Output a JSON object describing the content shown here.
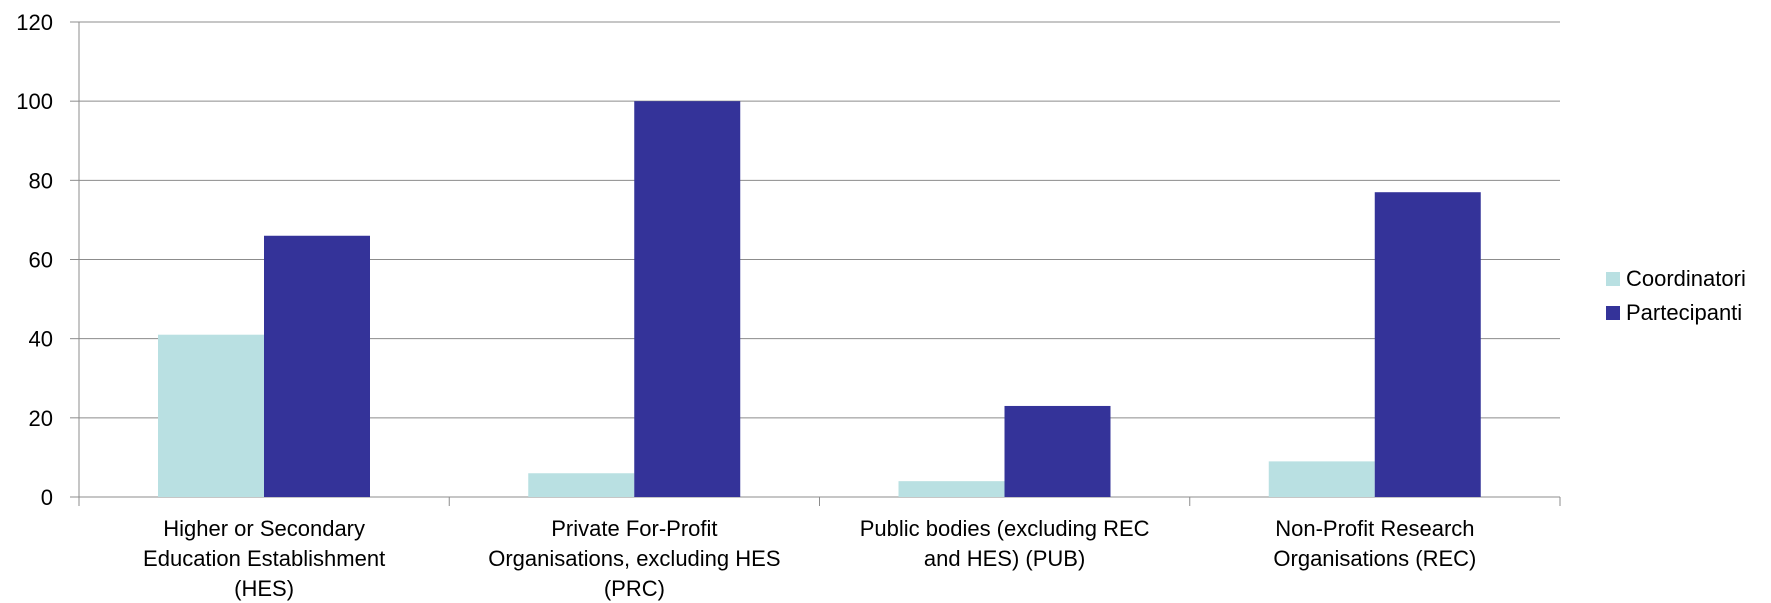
{
  "chart_data": {
    "type": "bar",
    "categories": [
      [
        "Higher or Secondary",
        "Education Establishment",
        "(HES)"
      ],
      [
        "Private For-Profit",
        "Organisations, excluding HES",
        "(PRC)"
      ],
      [
        "Public bodies (excluding REC",
        "and HES) (PUB)"
      ],
      [
        "Non-Profit Research",
        "Organisations (REC)"
      ]
    ],
    "series": [
      {
        "name": "Coordinatori",
        "color": "#b9e0e2",
        "values": [
          41,
          6,
          4,
          9
        ]
      },
      {
        "name": "Partecipanti",
        "color": "#343399",
        "values": [
          66,
          100,
          23,
          77
        ]
      }
    ],
    "ylim": [
      0,
      120
    ],
    "yticks": [
      0,
      20,
      40,
      60,
      80,
      100,
      120
    ],
    "grid": true,
    "legend_position": "right"
  }
}
